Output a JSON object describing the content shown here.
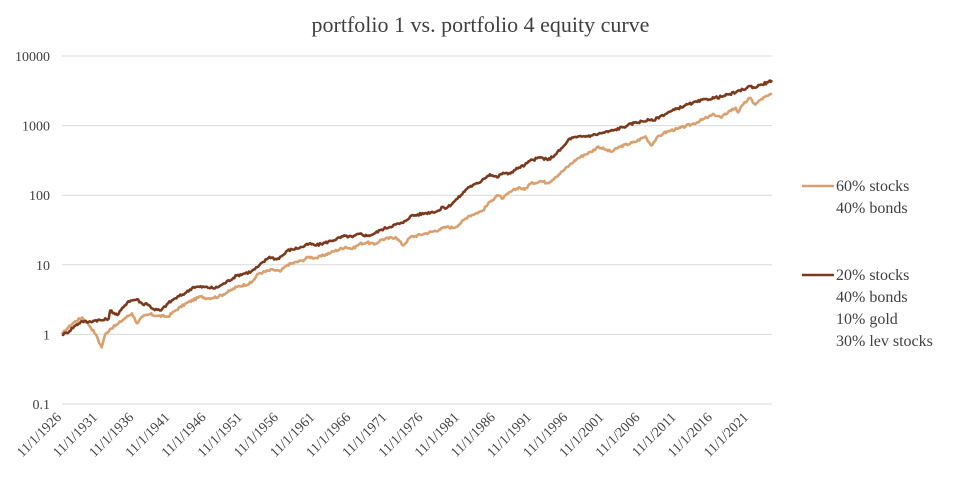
{
  "chart_data": {
    "type": "line",
    "title": "portfolio 1 vs. portfolio 4 equity curve",
    "xlabel": "",
    "ylabel": "",
    "y_scale": "log",
    "ylim": [
      0.1,
      10000
    ],
    "y_ticks": [
      "0.1",
      "1",
      "10",
      "100",
      "1000",
      "10000"
    ],
    "x_tick_labels": [
      "11/1/1926",
      "11/1/1931",
      "11/1/1936",
      "11/1/1941",
      "11/1/1946",
      "11/1/1951",
      "11/1/1956",
      "11/1/1961",
      "11/1/1966",
      "11/1/1971",
      "11/1/1976",
      "11/1/1981",
      "11/1/1986",
      "11/1/1991",
      "11/1/1996",
      "11/1/2001",
      "11/1/2006",
      "11/1/2011",
      "11/1/2016",
      "11/1/2021"
    ],
    "xlim": [
      1926.83,
      2025.0
    ],
    "grid": "horizontal",
    "legend_position": "right",
    "series": [
      {
        "name": "60% stocks\n40% bonds",
        "legend_lines": [
          "60% stocks",
          "40% bonds"
        ],
        "color": "#D9A070",
        "x": [
          1926.83,
          1927.5,
          1928.5,
          1929.6,
          1930.5,
          1931.5,
          1932.3,
          1932.8,
          1933.5,
          1934.5,
          1935.5,
          1936.5,
          1937.2,
          1938,
          1939,
          1940,
          1941.5,
          1942.5,
          1944,
          1946,
          1947,
          1948.5,
          1950,
          1951,
          1953,
          1954,
          1956,
          1957,
          1958,
          1960,
          1961,
          1962,
          1964,
          1966,
          1967,
          1968,
          1969,
          1970,
          1971,
          1973,
          1974,
          1975,
          1977,
          1979,
          1980,
          1981,
          1982,
          1983,
          1985,
          1986,
          1987,
          1987.8,
          1988.5,
          1990,
          1990.8,
          1991.5,
          1993,
          1994,
          1995,
          1996,
          1997,
          1998,
          1999,
          2000,
          2001,
          2002,
          2002.8,
          2004,
          2006,
          2007.5,
          2008.3,
          2009,
          2010,
          2011,
          2012,
          2014,
          2016,
          2017,
          2018,
          2019,
          2020,
          2020.3,
          2021,
          2021.9,
          2022.7,
          2023.5,
          2024.5,
          2025
        ],
        "y": [
          1.0,
          1.2,
          1.5,
          1.75,
          1.4,
          1.0,
          0.65,
          1.0,
          1.2,
          1.4,
          1.7,
          2.0,
          1.45,
          1.8,
          1.95,
          1.85,
          1.8,
          2.2,
          2.8,
          3.5,
          3.3,
          3.5,
          4.2,
          4.8,
          5.5,
          7.5,
          8.5,
          8.0,
          10.0,
          11.5,
          13.0,
          12.5,
          15.0,
          18.0,
          17.0,
          20.0,
          21.0,
          19.5,
          23.0,
          25.0,
          19.0,
          25.0,
          28.0,
          32.0,
          35.0,
          34.0,
          40.0,
          50.0,
          60.0,
          80.0,
          100.0,
          90.0,
          105.0,
          130.0,
          120.0,
          145.0,
          160.0,
          150.0,
          180.0,
          220.0,
          270.0,
          330.0,
          380.0,
          420.0,
          500.0,
          450.0,
          420.0,
          500.0,
          580.0,
          700.0,
          520.0,
          650.0,
          780.0,
          850.0,
          900.0,
          1050.0,
          1300.0,
          1450.0,
          1300.0,
          1600.0,
          1800.0,
          1550.0,
          2000.0,
          2500.0,
          2000.0,
          2400.0,
          2700.0,
          2900.0
        ]
      },
      {
        "name": "20% stocks\n40% bonds\n10% gold\n30% lev stocks",
        "legend_lines": [
          "20% stocks",
          "40% bonds",
          "10% gold",
          "30% lev stocks"
        ],
        "color": "#7B3A1E",
        "x": [
          1926.83,
          1927.5,
          1928.5,
          1929.6,
          1930.5,
          1931.5,
          1932.5,
          1933.3,
          1933.5,
          1934.5,
          1935.5,
          1936,
          1937.2,
          1938,
          1938.5,
          1939.5,
          1940.5,
          1941.5,
          1942.5,
          1944,
          1945,
          1946.5,
          1948,
          1949,
          1951,
          1953,
          1954,
          1955.5,
          1956.5,
          1957.5,
          1958,
          1960,
          1961,
          1962,
          1964,
          1966,
          1967,
          1968,
          1969,
          1970,
          1971,
          1973,
          1974,
          1975,
          1977,
          1979,
          1979.5,
          1980,
          1981,
          1982,
          1983,
          1984.5,
          1985,
          1986,
          1987,
          1987.8,
          1988.5,
          1990,
          1990.8,
          1991.5,
          1993,
          1994,
          1995,
          1996,
          1996.5,
          1997,
          1998,
          2000,
          2001,
          2003,
          2005,
          2006,
          2008,
          2008.5,
          2009.5,
          2011,
          2013,
          2014,
          2016,
          2018,
          2019,
          2020,
          2021,
          2022,
          2022.6,
          2023.5,
          2024.5,
          2025
        ],
        "y": [
          1.0,
          1.05,
          1.3,
          1.55,
          1.5,
          1.6,
          1.6,
          1.7,
          2.2,
          1.9,
          2.6,
          3.0,
          3.2,
          2.7,
          2.8,
          2.3,
          2.2,
          2.8,
          3.3,
          4.0,
          4.8,
          4.8,
          4.6,
          5.2,
          7.0,
          8.0,
          9.5,
          13.0,
          12.0,
          14.0,
          16.0,
          18.0,
          20.0,
          19.0,
          22.0,
          26.0,
          25.0,
          28.0,
          26.0,
          28.0,
          32.0,
          38.0,
          40.0,
          50.0,
          55.0,
          60.0,
          68.0,
          65.0,
          80.0,
          100.0,
          130.0,
          150.0,
          170.0,
          200.0,
          180.0,
          210.0,
          200.0,
          250.0,
          270.0,
          310.0,
          350.0,
          320.0,
          380.0,
          480.0,
          550.0,
          650.0,
          680.0,
          720.0,
          760.0,
          850.0,
          1000.0,
          1100.0,
          1200.0,
          1180.0,
          1350.0,
          1600.0,
          1950.0,
          2100.0,
          2400.0,
          2600.0,
          2800.0,
          3000.0,
          3300.0,
          3700.0,
          3500.0,
          3900.0,
          4200.0,
          4500.0
        ]
      }
    ]
  }
}
